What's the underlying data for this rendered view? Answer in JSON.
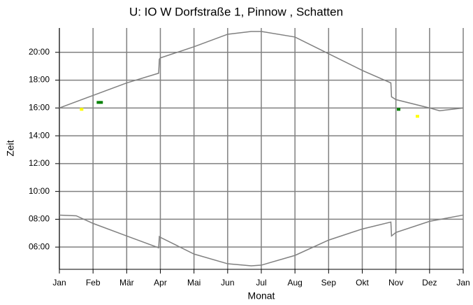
{
  "chart_data": {
    "type": "line",
    "title": "U: IO W Dorfstraße 1, Pinnow , Schatten",
    "x_label": "Monat",
    "y_label": "Zeit",
    "xlim": [
      0,
      12
    ],
    "xticks": [
      {
        "value": 0,
        "label": "Jan"
      },
      {
        "value": 1,
        "label": "Feb"
      },
      {
        "value": 2,
        "label": "Mär"
      },
      {
        "value": 3,
        "label": "Apr"
      },
      {
        "value": 4,
        "label": "Mai"
      },
      {
        "value": 5,
        "label": "Jun"
      },
      {
        "value": 6,
        "label": "Jul"
      },
      {
        "value": 7,
        "label": "Aug"
      },
      {
        "value": 8,
        "label": "Sep"
      },
      {
        "value": 9,
        "label": "Okt"
      },
      {
        "value": 10,
        "label": "Nov"
      },
      {
        "value": 11,
        "label": "Dez"
      },
      {
        "value": 12,
        "label": "Jan"
      }
    ],
    "ylim": [
      4.4,
      21.75
    ],
    "yticks": [
      {
        "value": 6,
        "label": "06:00"
      },
      {
        "value": 8,
        "label": "08:00"
      },
      {
        "value": 10,
        "label": "10:00"
      },
      {
        "value": 12,
        "label": "12:00"
      },
      {
        "value": 14,
        "label": "14:00"
      },
      {
        "value": 16,
        "label": "16:00"
      },
      {
        "value": 18,
        "label": "18:00"
      },
      {
        "value": 20,
        "label": "20:00"
      }
    ],
    "grid": true,
    "series": [
      {
        "mode": "line",
        "color": "#808080",
        "x": [
          0,
          1,
          2,
          2.95,
          2.97,
          3,
          4,
          5,
          5.7,
          6,
          7,
          8,
          9,
          9.85,
          9.87,
          10,
          11,
          11.3,
          12
        ],
        "values": [
          16.0,
          16.9,
          17.8,
          18.5,
          19.5,
          19.6,
          20.4,
          21.3,
          21.5,
          21.5,
          21.1,
          19.9,
          18.7,
          17.8,
          16.8,
          16.6,
          16.0,
          15.8,
          16.0
        ]
      },
      {
        "mode": "line",
        "color": "#808080",
        "x": [
          0,
          0.5,
          1,
          2,
          2.95,
          2.97,
          3,
          4,
          5,
          5.7,
          6,
          7,
          8,
          9,
          9.85,
          9.87,
          10,
          11,
          12
        ],
        "values": [
          8.3,
          8.25,
          7.7,
          6.8,
          5.95,
          6.75,
          6.7,
          5.5,
          4.8,
          4.65,
          4.7,
          5.4,
          6.5,
          7.3,
          7.8,
          6.8,
          7.05,
          7.85,
          8.3
        ]
      },
      {
        "mode": "markers",
        "color": "#ffff00",
        "x": [
          0.66,
          10.64
        ],
        "values": [
          15.9,
          15.4
        ]
      },
      {
        "mode": "markers",
        "color": "#008000",
        "x": [
          1.16,
          1.24,
          10.08
        ],
        "values": [
          16.4,
          16.4,
          15.9
        ]
      }
    ]
  }
}
